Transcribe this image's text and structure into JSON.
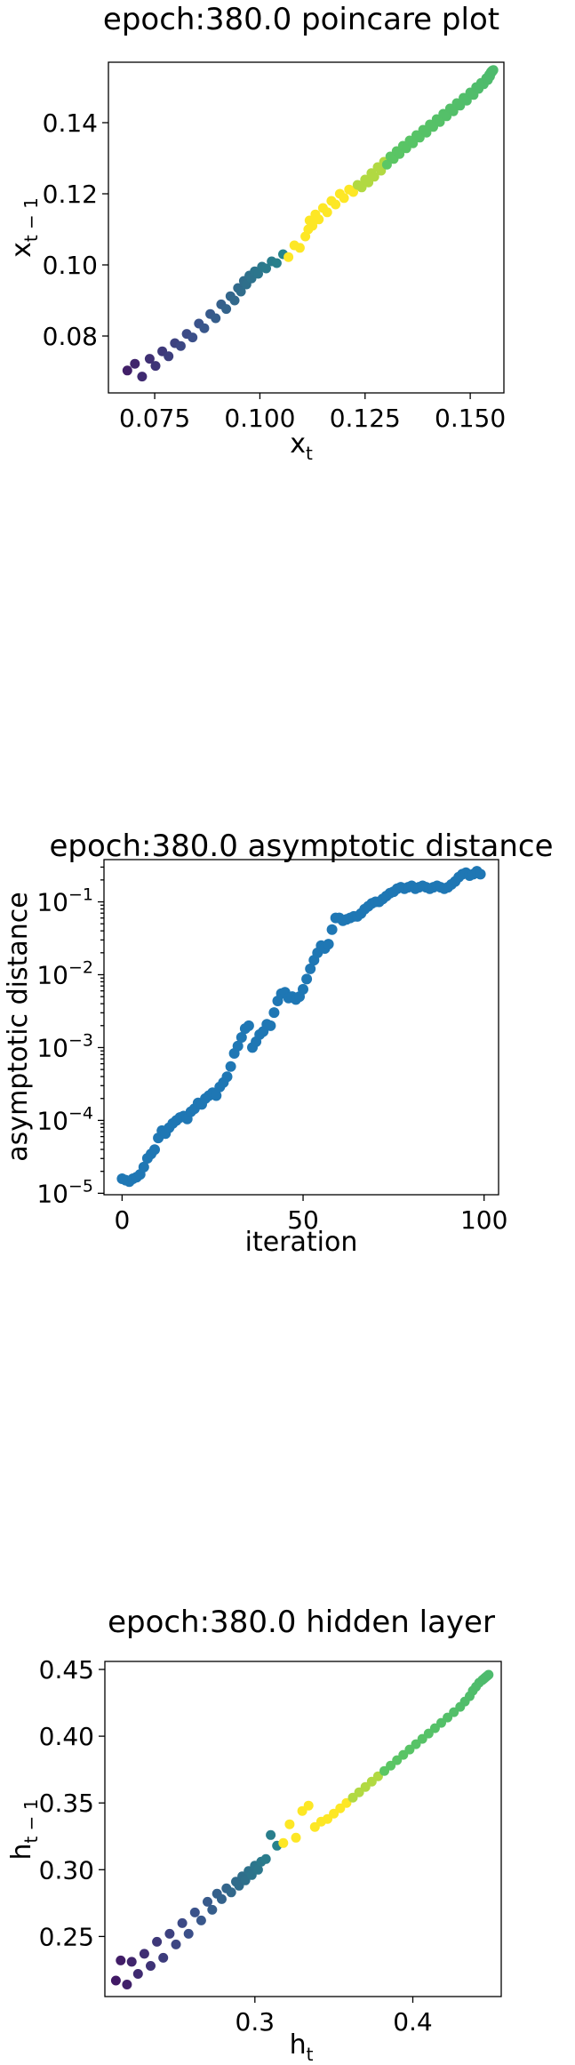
{
  "colormap": [
    "#440154",
    "#3b528b",
    "#21918c",
    "#5ec962",
    "#fde725"
  ],
  "chart_data": [
    {
      "type": "scatter",
      "title": "epoch:380.0 poincare plot",
      "xlabel": "x_t",
      "ylabel": "x_{t−1}",
      "xlim": [
        0.064,
        0.158
      ],
      "ylim": [
        0.064,
        0.157
      ],
      "x_ticks": [
        {
          "v": 0.075,
          "label": "0.075"
        },
        {
          "v": 0.1,
          "label": "0.100"
        },
        {
          "v": 0.125,
          "label": "0.125"
        },
        {
          "v": 0.15,
          "label": "0.150"
        }
      ],
      "y_ticks": [
        {
          "v": 0.08,
          "label": "0.08"
        },
        {
          "v": 0.1,
          "label": "0.10"
        },
        {
          "v": 0.12,
          "label": "0.12"
        },
        {
          "v": 0.14,
          "label": "0.14"
        }
      ],
      "point_colors": "viridis by series order",
      "points": [
        [
          0.0685,
          0.0703
        ],
        [
          0.0703,
          0.0722
        ],
        [
          0.072,
          0.0686
        ],
        [
          0.0738,
          0.0736
        ],
        [
          0.0752,
          0.0716
        ],
        [
          0.0768,
          0.0757
        ],
        [
          0.0783,
          0.0743
        ],
        [
          0.0798,
          0.078
        ],
        [
          0.0812,
          0.0772
        ],
        [
          0.0826,
          0.0806
        ],
        [
          0.084,
          0.0796
        ],
        [
          0.0855,
          0.0835
        ],
        [
          0.0868,
          0.0822
        ],
        [
          0.0882,
          0.0862
        ],
        [
          0.0895,
          0.085
        ],
        [
          0.0908,
          0.0889
        ],
        [
          0.092,
          0.0876
        ],
        [
          0.093,
          0.0912
        ],
        [
          0.094,
          0.09
        ],
        [
          0.0948,
          0.0935
        ],
        [
          0.0955,
          0.0925
        ],
        [
          0.0962,
          0.0955
        ],
        [
          0.0968,
          0.0945
        ],
        [
          0.0975,
          0.097
        ],
        [
          0.098,
          0.0962
        ],
        [
          0.0988,
          0.0982
        ],
        [
          0.0996,
          0.0975
        ],
        [
          0.1005,
          0.0995
        ],
        [
          0.1015,
          0.099
        ],
        [
          0.1028,
          0.101
        ],
        [
          0.104,
          0.1005
        ],
        [
          0.1055,
          0.103
        ],
        [
          0.1068,
          0.1022
        ],
        [
          0.1082,
          0.1055
        ],
        [
          0.1095,
          0.1048
        ],
        [
          0.1108,
          0.108
        ],
        [
          0.1115,
          0.11
        ],
        [
          0.1118,
          0.1125
        ],
        [
          0.1125,
          0.111
        ],
        [
          0.1132,
          0.1142
        ],
        [
          0.114,
          0.1128
        ],
        [
          0.115,
          0.116
        ],
        [
          0.116,
          0.1148
        ],
        [
          0.117,
          0.118
        ],
        [
          0.118,
          0.117
        ],
        [
          0.119,
          0.12
        ],
        [
          0.12,
          0.1188
        ],
        [
          0.1212,
          0.1212
        ],
        [
          0.1222,
          0.1205
        ],
        [
          0.1232,
          0.1225
        ],
        [
          0.1242,
          0.1218
        ],
        [
          0.125,
          0.124
        ],
        [
          0.1258,
          0.1232
        ],
        [
          0.1265,
          0.1258
        ],
        [
          0.1272,
          0.1248
        ],
        [
          0.128,
          0.1275
        ],
        [
          0.1288,
          0.1265
        ],
        [
          0.1295,
          0.129
        ],
        [
          0.1302,
          0.1282
        ],
        [
          0.131,
          0.1305
        ],
        [
          0.1318,
          0.1298
        ],
        [
          0.1325,
          0.132
        ],
        [
          0.1332,
          0.1312
        ],
        [
          0.134,
          0.1335
        ],
        [
          0.1348,
          0.1328
        ],
        [
          0.1356,
          0.135
        ],
        [
          0.1364,
          0.1342
        ],
        [
          0.1372,
          0.1365
        ],
        [
          0.138,
          0.1358
        ],
        [
          0.1388,
          0.138
        ],
        [
          0.1396,
          0.1372
        ],
        [
          0.1404,
          0.1395
        ],
        [
          0.1412,
          0.1388
        ],
        [
          0.142,
          0.141
        ],
        [
          0.1428,
          0.1402
        ],
        [
          0.1436,
          0.1425
        ],
        [
          0.1444,
          0.1418
        ],
        [
          0.1452,
          0.144
        ],
        [
          0.146,
          0.1432
        ],
        [
          0.1468,
          0.1455
        ],
        [
          0.1476,
          0.1448
        ],
        [
          0.1484,
          0.147
        ],
        [
          0.1492,
          0.1462
        ],
        [
          0.15,
          0.1485
        ],
        [
          0.1508,
          0.1478
        ],
        [
          0.1514,
          0.15
        ],
        [
          0.152,
          0.1495
        ],
        [
          0.1526,
          0.1512
        ],
        [
          0.1532,
          0.1508
        ],
        [
          0.1538,
          0.1525
        ],
        [
          0.1542,
          0.152
        ],
        [
          0.1545,
          0.1535
        ],
        [
          0.1547,
          0.153
        ],
        [
          0.1549,
          0.1542
        ],
        [
          0.155,
          0.154
        ],
        [
          0.1551,
          0.1545
        ],
        [
          0.1552,
          0.1543
        ],
        [
          0.1553,
          0.1547
        ],
        [
          0.1554,
          0.1546
        ],
        [
          0.1555,
          0.1548
        ]
      ]
    },
    {
      "type": "scatter",
      "title": "epoch:380.0 asymptotic distance",
      "xlabel": "iteration",
      "ylabel": "asymptotic distance",
      "y_scale": "log",
      "xlim": [
        -5,
        104
      ],
      "ylim_log10": [
        -5.02,
        -0.42
      ],
      "x_ticks": [
        {
          "v": 0,
          "label": "0"
        },
        {
          "v": 50,
          "label": "50"
        },
        {
          "v": 100,
          "label": "100"
        }
      ],
      "y_ticks": [
        {
          "e": -5,
          "label": "10^{−5}"
        },
        {
          "e": -4,
          "label": "10^{−4}"
        },
        {
          "e": -3,
          "label": "10^{−3}"
        },
        {
          "e": -2,
          "label": "10^{−2}"
        },
        {
          "e": -1,
          "label": "10^{−1}"
        }
      ],
      "color": "#1f77b4",
      "x": [
        0,
        1,
        2,
        3,
        4,
        5,
        6,
        7,
        8,
        9,
        10,
        11,
        12,
        13,
        14,
        15,
        16,
        17,
        18,
        19,
        20,
        21,
        22,
        23,
        24,
        25,
        26,
        27,
        28,
        29,
        30,
        31,
        32,
        33,
        34,
        35,
        36,
        37,
        38,
        39,
        40,
        41,
        42,
        43,
        44,
        45,
        46,
        47,
        48,
        49,
        50,
        51,
        52,
        53,
        54,
        55,
        56,
        57,
        58,
        59,
        60,
        61,
        62,
        63,
        64,
        65,
        66,
        67,
        68,
        69,
        70,
        71,
        72,
        73,
        74,
        75,
        76,
        77,
        78,
        79,
        80,
        81,
        82,
        83,
        84,
        85,
        86,
        87,
        88,
        89,
        90,
        91,
        92,
        93,
        94,
        95,
        96,
        97,
        98,
        99
      ],
      "log10_y": [
        -4.8,
        -4.82,
        -4.84,
        -4.8,
        -4.78,
        -4.74,
        -4.64,
        -4.52,
        -4.46,
        -4.4,
        -4.24,
        -4.14,
        -4.18,
        -4.1,
        -4.04,
        -4.0,
        -3.96,
        -3.94,
        -3.98,
        -3.88,
        -3.84,
        -3.76,
        -3.78,
        -3.7,
        -3.66,
        -3.62,
        -3.66,
        -3.54,
        -3.48,
        -3.4,
        -3.26,
        -3.08,
        -2.98,
        -2.86,
        -2.74,
        -2.7,
        -3.0,
        -2.92,
        -2.82,
        -2.78,
        -2.68,
        -2.7,
        -2.52,
        -2.36,
        -2.26,
        -2.24,
        -2.32,
        -2.3,
        -2.34,
        -2.3,
        -2.2,
        -2.06,
        -1.92,
        -1.8,
        -1.7,
        -1.6,
        -1.64,
        -1.58,
        -1.38,
        -1.22,
        -1.22,
        -1.26,
        -1.24,
        -1.22,
        -1.2,
        -1.2,
        -1.16,
        -1.1,
        -1.06,
        -1.02,
        -1.0,
        -1.0,
        -0.96,
        -0.92,
        -0.88,
        -0.86,
        -0.82,
        -0.8,
        -0.82,
        -0.8,
        -0.78,
        -0.82,
        -0.8,
        -0.78,
        -0.8,
        -0.82,
        -0.8,
        -0.78,
        -0.8,
        -0.82,
        -0.8,
        -0.76,
        -0.72,
        -0.66,
        -0.62,
        -0.6,
        -0.64,
        -0.62,
        -0.58,
        -0.62
      ]
    },
    {
      "type": "scatter",
      "title": "epoch:380.0 hidden layer",
      "xlabel": "h_t",
      "ylabel": "h_{t−1}",
      "xlim": [
        0.205,
        0.456
      ],
      "ylim": [
        0.205,
        0.456
      ],
      "x_ticks": [
        {
          "v": 0.3,
          "label": "0.3"
        },
        {
          "v": 0.4,
          "label": "0.4"
        }
      ],
      "y_ticks": [
        {
          "v": 0.25,
          "label": "0.25"
        },
        {
          "v": 0.3,
          "label": "0.30"
        },
        {
          "v": 0.35,
          "label": "0.35"
        },
        {
          "v": 0.4,
          "label": "0.40"
        },
        {
          "v": 0.45,
          "label": "0.45"
        }
      ],
      "point_colors": "viridis by series order",
      "points": [
        [
          0.212,
          0.217
        ],
        [
          0.215,
          0.232
        ],
        [
          0.219,
          0.214
        ],
        [
          0.222,
          0.231
        ],
        [
          0.226,
          0.222
        ],
        [
          0.23,
          0.237
        ],
        [
          0.234,
          0.228
        ],
        [
          0.238,
          0.246
        ],
        [
          0.242,
          0.234
        ],
        [
          0.246,
          0.252
        ],
        [
          0.25,
          0.244
        ],
        [
          0.254,
          0.26
        ],
        [
          0.258,
          0.252
        ],
        [
          0.262,
          0.268
        ],
        [
          0.266,
          0.262
        ],
        [
          0.27,
          0.276
        ],
        [
          0.273,
          0.27
        ],
        [
          0.276,
          0.282
        ],
        [
          0.279,
          0.278
        ],
        [
          0.282,
          0.286
        ],
        [
          0.285,
          0.283
        ],
        [
          0.288,
          0.291
        ],
        [
          0.29,
          0.288
        ],
        [
          0.292,
          0.295
        ],
        [
          0.294,
          0.292
        ],
        [
          0.296,
          0.299
        ],
        [
          0.298,
          0.296
        ],
        [
          0.3,
          0.303
        ],
        [
          0.302,
          0.3
        ],
        [
          0.304,
          0.306
        ],
        [
          0.307,
          0.308
        ],
        [
          0.31,
          0.326
        ],
        [
          0.314,
          0.318
        ],
        [
          0.318,
          0.32
        ],
        [
          0.322,
          0.334
        ],
        [
          0.326,
          0.324
        ],
        [
          0.33,
          0.344
        ],
        [
          0.334,
          0.348
        ],
        [
          0.338,
          0.332
        ],
        [
          0.342,
          0.336
        ],
        [
          0.346,
          0.338
        ],
        [
          0.35,
          0.342
        ],
        [
          0.354,
          0.346
        ],
        [
          0.358,
          0.35
        ],
        [
          0.362,
          0.354
        ],
        [
          0.366,
          0.358
        ],
        [
          0.37,
          0.362
        ],
        [
          0.374,
          0.366
        ],
        [
          0.378,
          0.37
        ],
        [
          0.382,
          0.374
        ],
        [
          0.386,
          0.378
        ],
        [
          0.39,
          0.382
        ],
        [
          0.394,
          0.386
        ],
        [
          0.398,
          0.39
        ],
        [
          0.402,
          0.394
        ],
        [
          0.406,
          0.398
        ],
        [
          0.41,
          0.402
        ],
        [
          0.414,
          0.406
        ],
        [
          0.418,
          0.41
        ],
        [
          0.422,
          0.414
        ],
        [
          0.426,
          0.418
        ],
        [
          0.43,
          0.422
        ],
        [
          0.433,
          0.426
        ],
        [
          0.436,
          0.43
        ],
        [
          0.438,
          0.434
        ],
        [
          0.44,
          0.437
        ],
        [
          0.442,
          0.44
        ],
        [
          0.444,
          0.442
        ],
        [
          0.445,
          0.443
        ],
        [
          0.446,
          0.444
        ],
        [
          0.447,
          0.445
        ],
        [
          0.448,
          0.446
        ]
      ]
    }
  ]
}
